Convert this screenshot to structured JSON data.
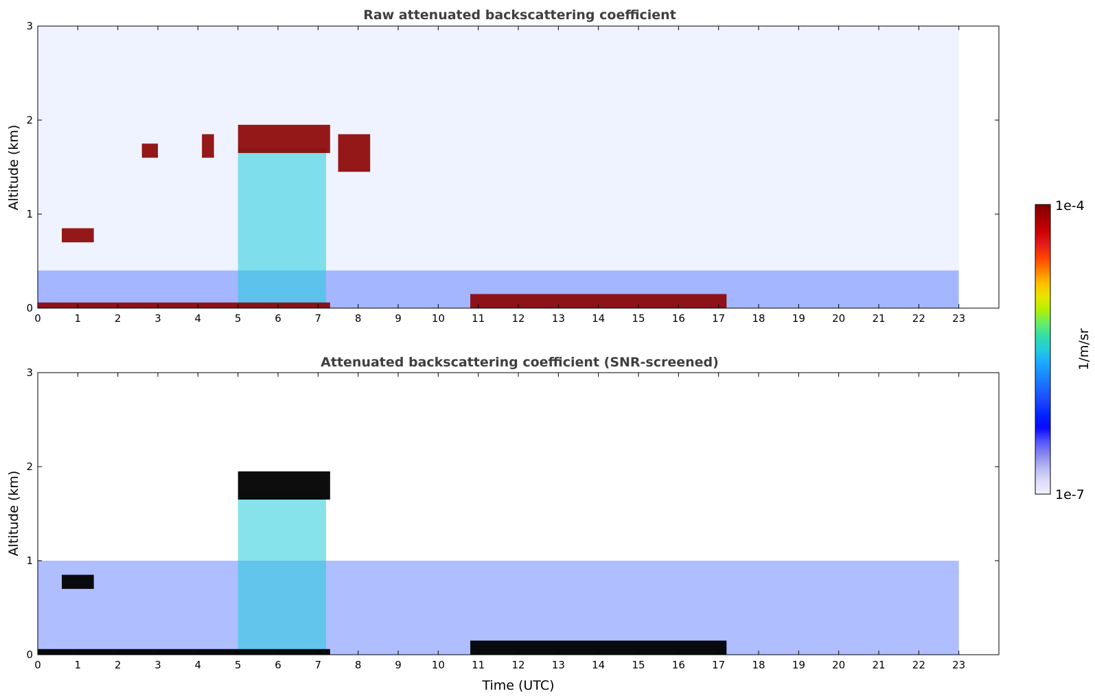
{
  "chart_data": [
    {
      "type": "heatmap",
      "title": "Raw attenuated backscattering coefficient",
      "xlabel": "",
      "ylabel": "Altitude (km)",
      "xlim": [
        0,
        24
      ],
      "ylim": [
        0,
        3
      ],
      "xticks": [
        "0",
        "1",
        "2",
        "3",
        "4",
        "5",
        "6",
        "7",
        "8",
        "9",
        "10",
        "11",
        "12",
        "13",
        "14",
        "15",
        "16",
        "17",
        "18",
        "19",
        "20",
        "21",
        "22",
        "23"
      ],
      "yticks": [
        "0",
        "1",
        "2",
        "3"
      ],
      "data_end_time": 23,
      "features": [
        {
          "name": "surface layer",
          "t": [
            0,
            7.3
          ],
          "z": [
            0,
            0.06
          ],
          "level": "high"
        },
        {
          "name": "surface layer",
          "t": [
            10.8,
            17.2
          ],
          "z": [
            0,
            0.15
          ],
          "level": "high"
        },
        {
          "name": "cloud",
          "t": [
            0.6,
            1.4
          ],
          "z": [
            0.7,
            0.85
          ],
          "level": "high"
        },
        {
          "name": "cloud",
          "t": [
            2.6,
            3.0
          ],
          "z": [
            1.6,
            1.75
          ],
          "level": "high"
        },
        {
          "name": "cloud",
          "t": [
            4.1,
            4.4
          ],
          "z": [
            1.6,
            1.85
          ],
          "level": "high"
        },
        {
          "name": "cloud",
          "t": [
            5.0,
            7.3
          ],
          "z": [
            1.65,
            1.95
          ],
          "level": "high"
        },
        {
          "name": "cloud",
          "t": [
            7.5,
            8.3
          ],
          "z": [
            1.45,
            1.85
          ],
          "level": "high"
        },
        {
          "name": "precipitation",
          "t": [
            5.0,
            7.2
          ],
          "z": [
            0,
            1.7
          ],
          "level": "mid"
        },
        {
          "name": "boundary layer",
          "t": [
            0,
            23
          ],
          "z": [
            0,
            0.4
          ],
          "level": "low"
        }
      ],
      "grid": false
    },
    {
      "type": "heatmap",
      "title": "Attenuated backscattering coefficient (SNR-screened)",
      "xlabel": "Time (UTC)",
      "ylabel": "Altitude (km)",
      "xlim": [
        0,
        24
      ],
      "ylim": [
        0,
        3
      ],
      "xticks": [
        "0",
        "1",
        "2",
        "3",
        "4",
        "5",
        "6",
        "7",
        "8",
        "9",
        "10",
        "11",
        "12",
        "13",
        "14",
        "15",
        "16",
        "17",
        "18",
        "19",
        "20",
        "21",
        "22",
        "23"
      ],
      "yticks": [
        "0",
        "1",
        "2",
        "3"
      ],
      "data_end_time": 23,
      "features": [
        {
          "name": "surface layer",
          "t": [
            0,
            7.3
          ],
          "z": [
            0,
            0.06
          ],
          "level": "saturated"
        },
        {
          "name": "surface layer",
          "t": [
            10.8,
            17.2
          ],
          "z": [
            0,
            0.15
          ],
          "level": "saturated"
        },
        {
          "name": "cloud",
          "t": [
            0.6,
            1.4
          ],
          "z": [
            0.7,
            0.85
          ],
          "level": "saturated"
        },
        {
          "name": "cloud",
          "t": [
            5.0,
            7.3
          ],
          "z": [
            1.65,
            1.95
          ],
          "level": "saturated"
        },
        {
          "name": "precipitation",
          "t": [
            5.0,
            7.2
          ],
          "z": [
            0,
            1.7
          ],
          "level": "mid"
        },
        {
          "name": "boundary layer",
          "t": [
            0,
            23
          ],
          "z": [
            0,
            1.0
          ],
          "level": "low"
        }
      ],
      "grid": false
    }
  ],
  "colorbar": {
    "top_label": "1e-4",
    "bottom_label": "1e-7",
    "unit_label": "1/m/sr",
    "colors": [
      "#7f0000",
      "#a50000",
      "#cc0000",
      "#e31a1c",
      "#ff4000",
      "#ff8000",
      "#ffc000",
      "#e6e600",
      "#b3f000",
      "#66ee66",
      "#33ddaa",
      "#22ccdd",
      "#1aaaff",
      "#1a88ff",
      "#1a66ff",
      "#1a44ff",
      "#0022ff",
      "#0a0aff",
      "#5555ff",
      "#8888ee",
      "#b8b8f4",
      "#dcdcfa",
      "#f0f0ff"
    ]
  }
}
